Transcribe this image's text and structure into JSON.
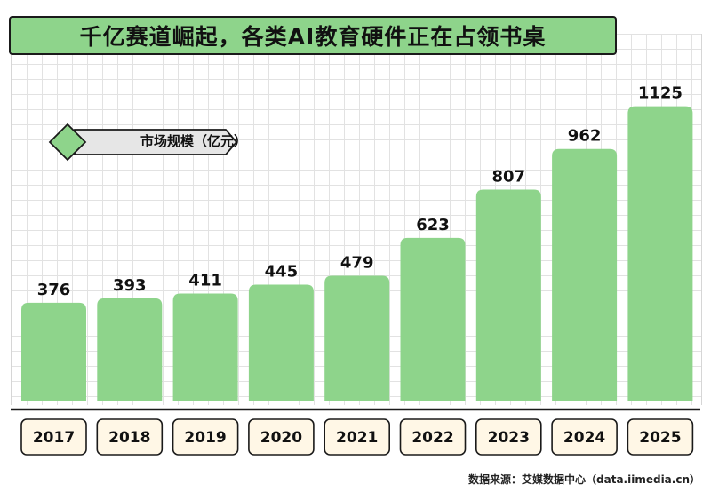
{
  "title": "千亿赛道崛起，各类AI教育硬件正在占领书桌",
  "source": "数据来源：艾媒数据中心（data.iimedia.cn）",
  "colors": {
    "bar": "#8ed48b",
    "year_box": "#fff7e6",
    "title_bg": "#8ed48b"
  },
  "chart_data": {
    "type": "bar",
    "title": "千亿赛道崛起，各类AI教育硬件正在占领书桌",
    "categories": [
      "2017",
      "2018",
      "2019",
      "2020",
      "2021",
      "2022",
      "2023",
      "2024",
      "2025"
    ],
    "series": [
      {
        "name": "市场规模（亿元）",
        "values": [
          376,
          393,
          411,
          445,
          479,
          623,
          807,
          962,
          1125
        ]
      }
    ],
    "legend": "top-left",
    "grid": true
  }
}
